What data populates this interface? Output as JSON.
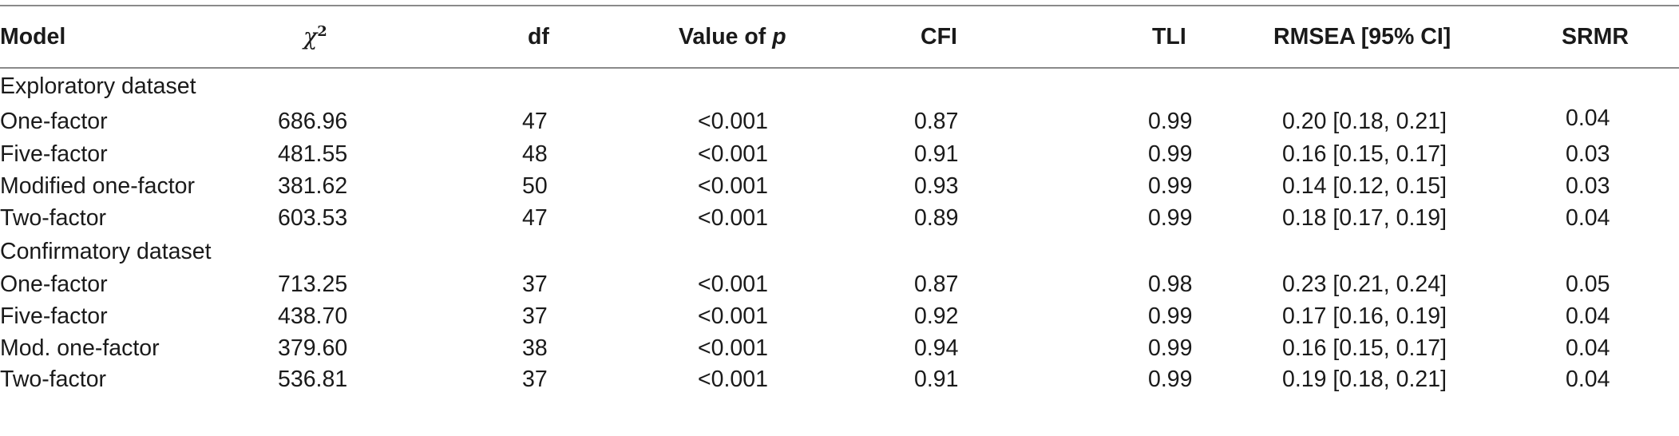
{
  "table": {
    "headers": {
      "model": "Model",
      "chi_symbol": "χ",
      "chi_sup": "2",
      "df": "df",
      "p_prefix": "Value of ",
      "p_symbol": "p",
      "cfi": "CFI",
      "tli": "TLI",
      "rmsea": "RMSEA [95% CI]",
      "srmr": "SRMR"
    },
    "sections": [
      {
        "title": "Exploratory dataset",
        "rows": [
          {
            "model": "One-factor",
            "chi2": "686.96",
            "df": "47",
            "p": "<0.001",
            "cfi": "0.87",
            "tli": "0.99",
            "rmsea": "0.20 [0.18, 0.21]",
            "srmr": "0.04"
          },
          {
            "model": "Five-factor",
            "chi2": "481.55",
            "df": "48",
            "p": "<0.001",
            "cfi": "0.91",
            "tli": "0.99",
            "rmsea": "0.16 [0.15, 0.17]",
            "srmr": "0.03"
          },
          {
            "model": "Modified one-factor",
            "chi2": "381.62",
            "df": "50",
            "p": "<0.001",
            "cfi": "0.93",
            "tli": "0.99",
            "rmsea": "0.14 [0.12, 0.15]",
            "srmr": "0.03"
          },
          {
            "model": "Two-factor",
            "chi2": "603.53",
            "df": "47",
            "p": "<0.001",
            "cfi": "0.89",
            "tli": "0.99",
            "rmsea": "0.18 [0.17, 0.19]",
            "srmr": "0.04"
          }
        ]
      },
      {
        "title": "Confirmatory dataset",
        "rows": [
          {
            "model": "One-factor",
            "chi2": "713.25",
            "df": "37",
            "p": "<0.001",
            "cfi": "0.87",
            "tli": "0.98",
            "rmsea": "0.23 [0.21, 0.24]",
            "srmr": "0.05"
          },
          {
            "model": "Five-factor",
            "chi2": "438.70",
            "df": "37",
            "p": "<0.001",
            "cfi": "0.92",
            "tli": "0.99",
            "rmsea": "0.17 [0.16, 0.19]",
            "srmr": "0.04"
          },
          {
            "model": "Mod. one-factor",
            "chi2": "379.60",
            "df": "38",
            "p": "<0.001",
            "cfi": "0.94",
            "tli": "0.99",
            "rmsea": "0.16 [0.15, 0.17]",
            "srmr": "0.04"
          },
          {
            "model": "Two-factor",
            "chi2": "536.81",
            "df": "37",
            "p": "<0.001",
            "cfi": "0.91",
            "tli": "0.99",
            "rmsea": "0.19 [0.18, 0.21]",
            "srmr": "0.04"
          }
        ]
      }
    ]
  }
}
